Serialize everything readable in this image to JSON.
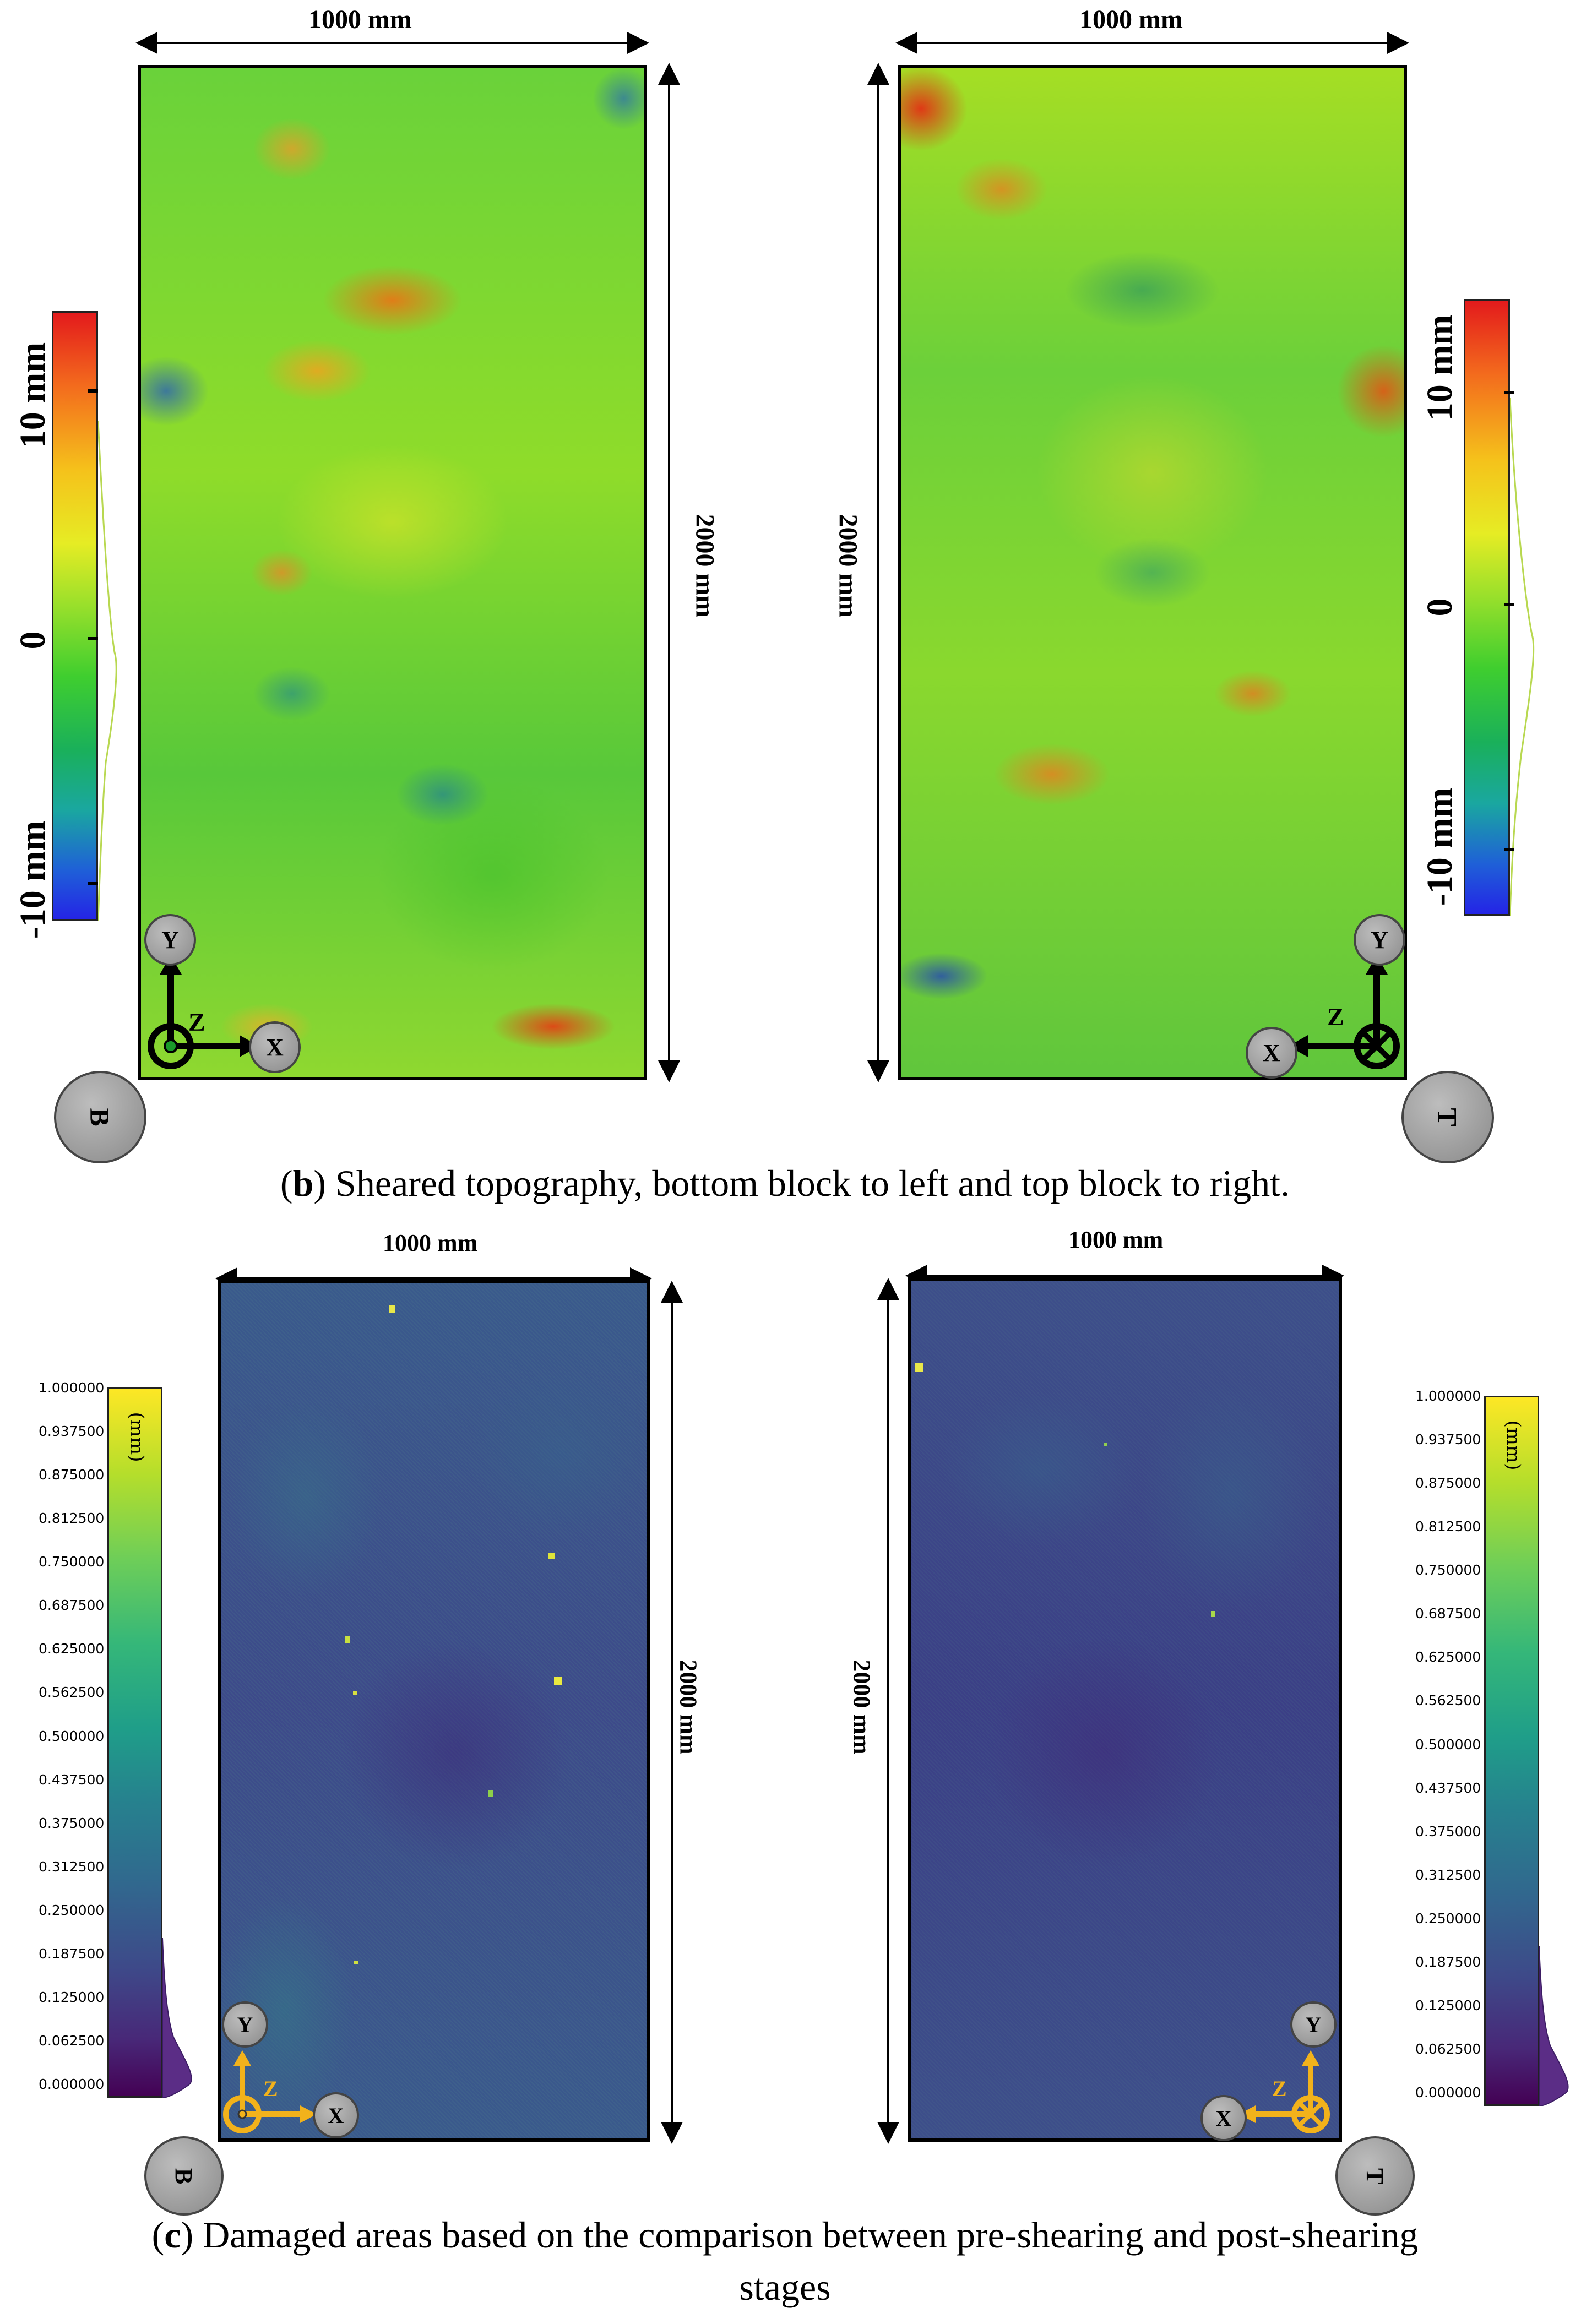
{
  "panel_b": {
    "caption_letter": "b",
    "caption_text": ") Sheared topography, bottom block to left and top block to right.",
    "caption_open": "(",
    "left": {
      "width_label": "1000 mm",
      "height_label": "2000 mm",
      "block_badge": "B",
      "axis_y": "Y",
      "axis_x": "X",
      "axis_z": "Z"
    },
    "right": {
      "width_label": "1000 mm",
      "height_label": "2000 mm",
      "block_badge": "T",
      "axis_y": "Y",
      "axis_x": "X",
      "axis_z": "Z"
    },
    "colorbar": {
      "label_top": "10 mm",
      "label_mid": "0",
      "label_bottom": "-10 mm"
    }
  },
  "panel_c": {
    "caption_open": "(",
    "caption_letter": "c",
    "caption_line1": ") Damaged areas based on the comparison between pre-shearing and post-shearing",
    "caption_line2": "stages",
    "left": {
      "width_label": "1000 mm",
      "height_label": "2000 mm",
      "block_badge": "B",
      "axis_y": "Y",
      "axis_x": "X",
      "axis_z": "Z"
    },
    "right": {
      "width_label": "1000 mm",
      "height_label": "2000 mm",
      "block_badge": "T",
      "axis_y": "Y",
      "axis_x": "X",
      "axis_z": "Z"
    },
    "colorbar": {
      "unit": "(mm)",
      "ticks": [
        "1.000000",
        "0.937500",
        "0.875000",
        "0.812500",
        "0.750000",
        "0.687500",
        "0.625000",
        "0.562500",
        "0.500000",
        "0.437500",
        "0.375000",
        "0.312500",
        "0.250000",
        "0.187500",
        "0.125000",
        "0.062500",
        "0.000000"
      ]
    }
  },
  "colors": {
    "axis_b": "#000000",
    "axis_c": "#f2b21b"
  }
}
